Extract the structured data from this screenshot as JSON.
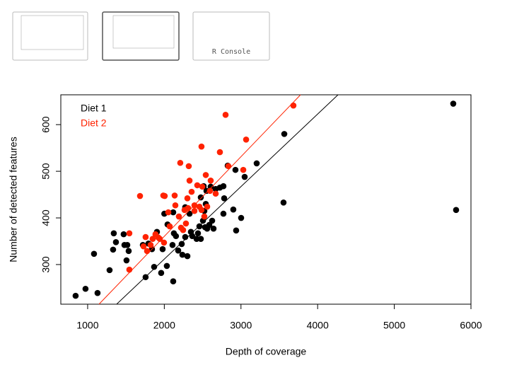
{
  "thumbnails": {
    "console_label": "R Console"
  },
  "chart_data": {
    "type": "scatter",
    "xlabel": "Depth of coverage",
    "ylabel": "Number of detected features",
    "xlim": [
      650,
      6000
    ],
    "ylim": [
      215,
      664
    ],
    "xticks": [
      1000,
      2000,
      3000,
      4000,
      5000,
      6000
    ],
    "yticks": [
      300,
      400,
      500,
      600
    ],
    "legend": "upper left",
    "series": [
      {
        "name": "Diet 1",
        "color": "#000000",
        "x": [
          843,
          972,
          1129,
          1083,
          1341,
          1332,
          1369,
          1470,
          1480,
          1517,
          1535,
          1286,
          1507,
          1756,
          1867,
          1959,
          2116,
          2033,
          1720,
          1793,
          1839,
          1904,
          2000,
          2042,
          2116,
          2125,
          2152,
          2107,
          2181,
          2227,
          2273,
          2301,
          1978,
          2236,
          2329,
          2347,
          2365,
          2421,
          2439,
          2458,
          2476,
          2504,
          2532,
          2559,
          2587,
          2642,
          2605,
          2624,
          2513,
          2476,
          2522,
          2550,
          2670,
          2725,
          2771,
          2781,
          2771,
          2827,
          2928,
          2900,
          2937,
          3002,
          3048,
          3205,
          3565,
          3555,
          5769,
          5806,
          2541,
          2273
        ],
        "values": [
          233,
          248,
          239,
          323,
          367,
          332,
          348,
          365,
          342,
          342,
          329,
          288,
          309,
          273,
          295,
          282,
          264,
          297,
          342,
          345,
          333,
          370,
          409,
          386,
          412,
          367,
          361,
          342,
          330,
          344,
          359,
          318,
          333,
          321,
          409,
          370,
          361,
          355,
          367,
          382,
          355,
          394,
          380,
          377,
          385,
          377,
          467,
          394,
          468,
          444,
          415,
          458,
          462,
          465,
          468,
          442,
          409,
          512,
          503,
          418,
          373,
          400,
          488,
          517,
          580,
          433,
          645,
          417,
          430,
          423
        ],
        "fit": {
          "x": [
            1378,
            4266
          ],
          "y": [
            215,
            664
          ]
        }
      },
      {
        "name": "Diet 2",
        "color": "#ff2200",
        "x": [
          1544,
          1544,
          1683,
          1729,
          1756,
          1775,
          1821,
          1848,
          1885,
          1922,
          1941,
          1996,
          1987,
          2005,
          2052,
          2070,
          2135,
          2144,
          2190,
          2218,
          2208,
          2245,
          2282,
          2264,
          2301,
          2310,
          2329,
          2319,
          2393,
          2356,
          2430,
          2458,
          2485,
          2495,
          2522,
          2559,
          2485,
          2541,
          2596,
          2605,
          2725,
          2799,
          2836,
          3030,
          3067,
          3684,
          2393,
          2670
        ],
        "values": [
          289,
          367,
          447,
          339,
          359,
          329,
          342,
          355,
          365,
          358,
          355,
          347,
          448,
          447,
          412,
          382,
          448,
          427,
          403,
          379,
          518,
          374,
          388,
          417,
          442,
          421,
          480,
          511,
          427,
          456,
          470,
          424,
          417,
          467,
          403,
          424,
          553,
          492,
          458,
          480,
          541,
          621,
          511,
          503,
          568,
          641,
          415,
          452
        ],
        "fit": {
          "x": [
            1148,
            3777
          ],
          "y": [
            215,
            664
          ]
        }
      }
    ]
  }
}
